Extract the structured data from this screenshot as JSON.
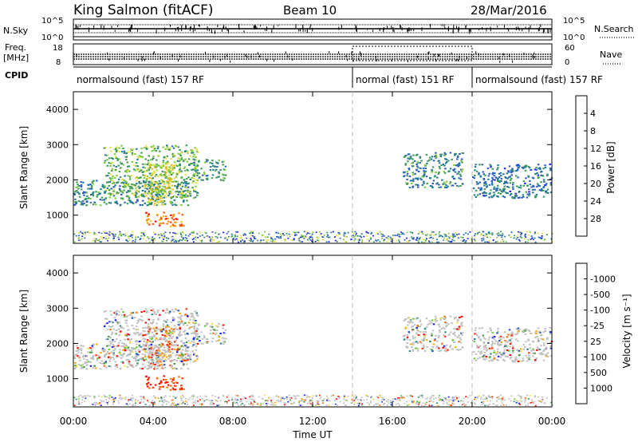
{
  "header": {
    "station": "King Salmon (fitACF)",
    "beam": "Beam 10",
    "date": "28/Mar/2016"
  },
  "top_panels": {
    "nsky_label": "N.Sky",
    "nsky_ticks": [
      "10^5",
      "10^0"
    ],
    "nsearch_label": "N.Search",
    "nsearch_ticks": [
      "10^5",
      "10^0"
    ],
    "freq_label": "Freq.",
    "freq_unit": "[MHz]",
    "freq_ticks": [
      "18",
      "8"
    ],
    "nave_label": "Nave",
    "nave_ticks": [
      "60",
      "0"
    ],
    "cpid_label": "CPID"
  },
  "cpid_segments": [
    {
      "label": "normalsound (fast) 157 RF",
      "start_h": 0,
      "end_h": 14
    },
    {
      "label": "normal (fast) 151 RF",
      "start_h": 14,
      "end_h": 20
    },
    {
      "label": "normalsound (fast) 157 RF",
      "start_h": 20,
      "end_h": 24
    }
  ],
  "colors": {
    "power": [
      "#1a1aff",
      "#2a5bc8",
      "#1f7a99",
      "#3a9a55",
      "#7ecb3a",
      "#e6e040",
      "#f5b915",
      "#ff8a00",
      "#ff4a00",
      "#ff0000"
    ],
    "velocity": [
      "#1a1aff",
      "#2250c8",
      "#2d8a8a",
      "#3a9a3a",
      "#5fd030",
      "#c0c0c0",
      "#f5e040",
      "#ffa500",
      "#ff6a00",
      "#ff2a00",
      "#ff0000"
    ]
  },
  "chart_data": [
    {
      "type": "heatmap",
      "panel": "power",
      "ylabel": "Slant Range [km]",
      "ylim": [
        200,
        4500
      ],
      "xlim": [
        0,
        24
      ],
      "yticks": [
        "1000",
        "2000",
        "3000",
        "4000"
      ],
      "colorbar_label": "Power [dB]",
      "colorbar_ticks": [
        "4",
        "8",
        "12",
        "16",
        "20",
        "24",
        "28"
      ],
      "scatter_regions": [
        {
          "t": [
            0,
            5.8
          ],
          "r": [
            1300,
            2000
          ],
          "level": 0.25
        },
        {
          "t": [
            1.5,
            6.2
          ],
          "r": [
            1500,
            3000
          ],
          "level": 0.4
        },
        {
          "t": [
            3.5,
            5.0
          ],
          "r": [
            1300,
            2500
          ],
          "level": 0.55
        },
        {
          "t": [
            3.6,
            5.5
          ],
          "r": [
            700,
            1100
          ],
          "level": 0.8
        },
        {
          "t": [
            6.0,
            7.6
          ],
          "r": [
            2000,
            2600
          ],
          "level": 0.3
        },
        {
          "t": [
            16.5,
            19.5
          ],
          "r": [
            1800,
            2800
          ],
          "level": 0.25
        },
        {
          "t": [
            20.0,
            24.0
          ],
          "r": [
            1500,
            2500
          ],
          "level": 0.2
        }
      ]
    },
    {
      "type": "heatmap",
      "panel": "velocity",
      "ylabel": "Slant Range [km]",
      "ylim": [
        200,
        4500
      ],
      "xlim": [
        0,
        24
      ],
      "yticks": [
        "1000",
        "2000",
        "3000",
        "4000"
      ],
      "colorbar_label": "Velocity [m s⁻¹]",
      "colorbar_ticks": [
        "1000",
        "500",
        "100",
        "25",
        "-25",
        "-100",
        "-500",
        "-1000"
      ],
      "xticks": [
        "00:00",
        "04:00",
        "08:00",
        "12:00",
        "16:00",
        "20:00",
        "00:00"
      ],
      "xlabel": "Time UT"
    }
  ]
}
